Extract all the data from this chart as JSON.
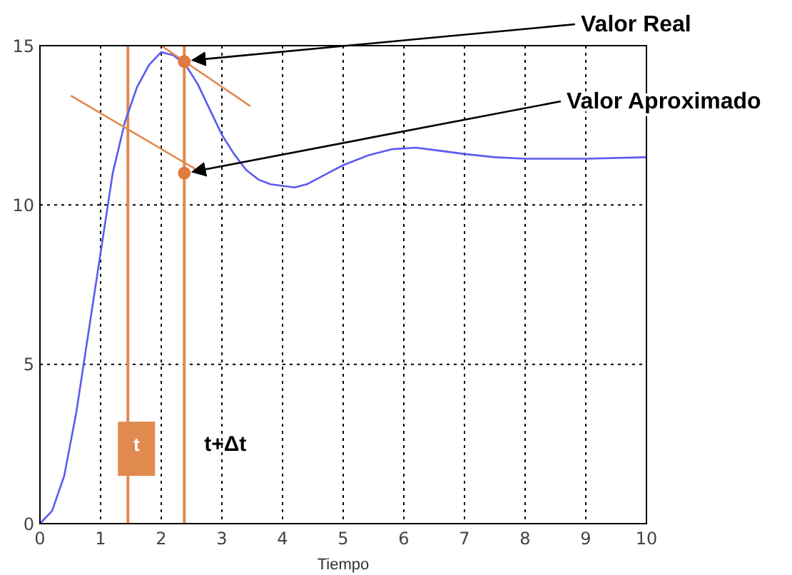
{
  "chart_data": {
    "type": "line",
    "xlabel": "Tiempo",
    "xlim": [
      0,
      10
    ],
    "xticks": [
      0,
      1,
      2,
      3,
      4,
      5,
      6,
      7,
      8,
      9,
      10
    ],
    "ylim": [
      0,
      15
    ],
    "yticks": [
      0,
      5,
      10,
      15
    ],
    "grid": true,
    "legend": false,
    "x": [
      0,
      0.2,
      0.4,
      0.6,
      0.8,
      1.0,
      1.2,
      1.4,
      1.6,
      1.8,
      2.0,
      2.2,
      2.4,
      2.6,
      2.8,
      3.0,
      3.2,
      3.4,
      3.6,
      3.8,
      4.0,
      4.2,
      4.4,
      4.6,
      4.8,
      5.0,
      5.4,
      5.8,
      6.2,
      6.6,
      7.0,
      7.5,
      8.0,
      9.0,
      10
    ],
    "series": [
      {
        "color": "#5a5af0",
        "values": [
          0,
          0.4,
          1.5,
          3.5,
          6,
          8.5,
          11,
          12.6,
          13.7,
          14.4,
          14.8,
          14.7,
          14.4,
          13.8,
          13.0,
          12.2,
          11.6,
          11.1,
          10.8,
          10.65,
          10.6,
          10.55,
          10.65,
          10.85,
          11.05,
          11.25,
          11.55,
          11.75,
          11.8,
          11.7,
          11.6,
          11.5,
          11.45,
          11.45,
          11.5
        ]
      },
      {
        "type": "line",
        "color": "#e08a50",
        "x": [
          2.0,
          3.47
        ],
        "values": [
          15.0,
          13.1
        ]
      },
      {
        "type": "line",
        "color": "#e08a50",
        "x": [
          0.51,
          2.74
        ],
        "values": [
          13.43,
          10.93
        ]
      },
      {
        "type": "scatter",
        "color": "#e07a40",
        "x": [
          2.38,
          2.38
        ],
        "values": [
          14.5,
          11.0
        ]
      }
    ],
    "ref_lines": [
      {
        "axis": "x",
        "value": 1.45,
        "label": "t",
        "color": "#e08a50"
      },
      {
        "axis": "x",
        "value": 2.38,
        "label": "t+Δt",
        "color": "#e08a50"
      }
    ],
    "annotations": [
      {
        "text": "Valor Real",
        "x": 2.38,
        "y": 14.5
      },
      {
        "text": "Valor Aproximado",
        "x": 2.38,
        "y": 11.0
      }
    ]
  }
}
